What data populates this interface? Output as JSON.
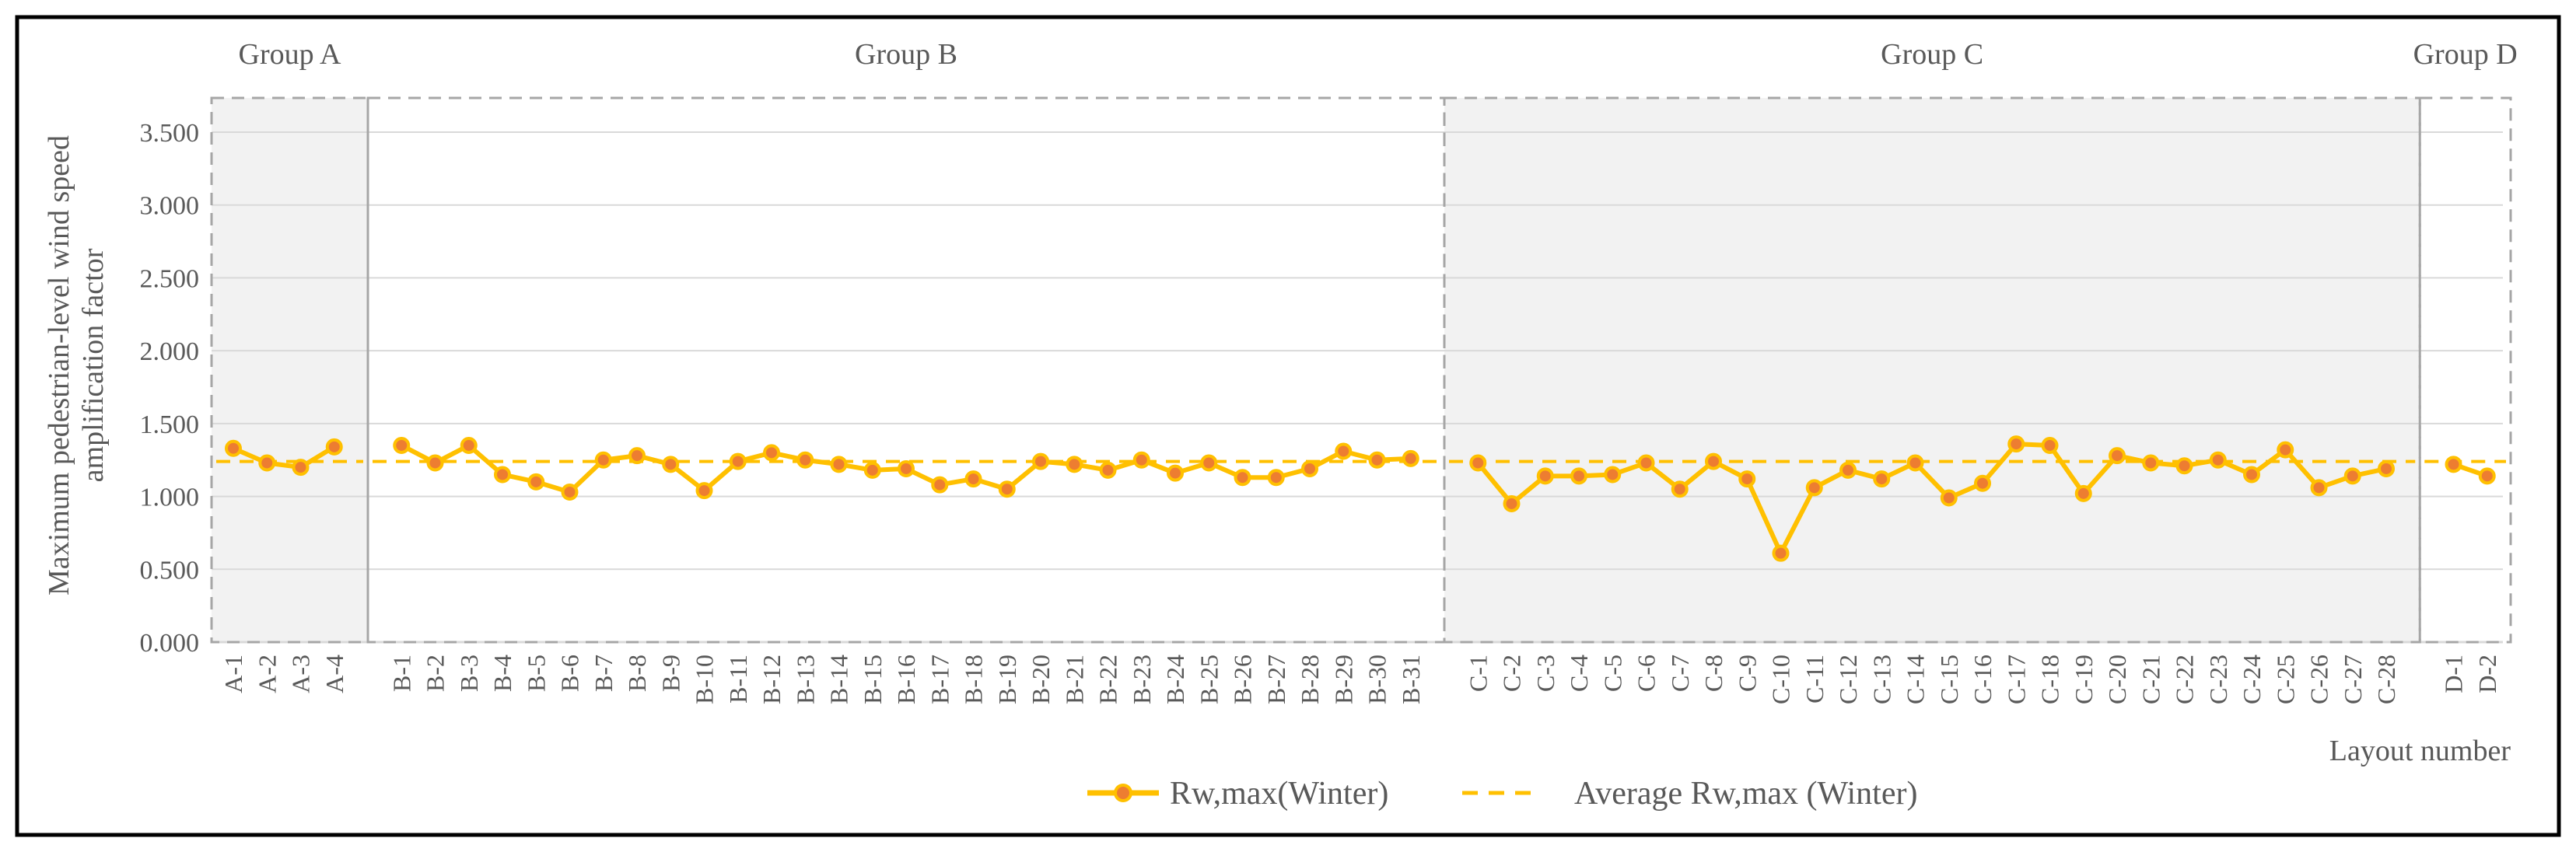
{
  "chart_data": {
    "type": "line",
    "ylabel": [
      "Maximum pedestrian-level wind speed",
      "amplification factor"
    ],
    "xlabel": "Layout number",
    "ylim": [
      0,
      3.5
    ],
    "y_ticks": [
      "0.000",
      "0.500",
      "1.000",
      "1.500",
      "2.000",
      "2.500",
      "3.000",
      "3.500"
    ],
    "grid": "horizontal",
    "legend_position": "bottom-center",
    "colors": {
      "line": "#FFC000",
      "marker_fill": "#ED7D31",
      "marker_stroke": "#FFC000",
      "average": "#FFC000",
      "group_shade": "#F2F2F2",
      "group_border": "#A6A6A6",
      "grid": "#D9D9D9",
      "text": "#595959",
      "frame": "#000000"
    },
    "groups": [
      {
        "label": "Group A",
        "categories": [
          "A-1",
          "A-2",
          "A-3",
          "A-4"
        ],
        "shaded": true
      },
      {
        "label": "Group B",
        "categories": [
          "B-1",
          "B-2",
          "B-3",
          "B-4",
          "B-5",
          "B-6",
          "B-7",
          "B-8",
          "B-9",
          "B-10",
          "B-11",
          "B-12",
          "B-13",
          "B-14",
          "B-15",
          "B-16",
          "B-17",
          "B-18",
          "B-19",
          "B-20",
          "B-21",
          "B-22",
          "B-23",
          "B-24",
          "B-25",
          "B-26",
          "B-27",
          "B-28",
          "B-29",
          "B-30",
          "B-31"
        ],
        "shaded": false
      },
      {
        "label": "Group C",
        "categories": [
          "C-1",
          "C-2",
          "C-3",
          "C-4",
          "C-5",
          "C-6",
          "C-7",
          "C-8",
          "C-9",
          "C-10",
          "C-11",
          "C-12",
          "C-13",
          "C-14",
          "C-15",
          "C-16",
          "C-17",
          "C-18",
          "C-19",
          "C-20",
          "C-21",
          "C-22",
          "C-23",
          "C-24",
          "C-25",
          "C-26",
          "C-27",
          "C-28"
        ],
        "shaded": true
      },
      {
        "label": "Group D",
        "categories": [
          "D-1",
          "D-2"
        ],
        "shaded": false
      }
    ],
    "series": [
      {
        "name": "Rw,max(Winter)",
        "values": [
          [
            1.33,
            1.23,
            1.2,
            1.34
          ],
          [
            1.35,
            1.23,
            1.35,
            1.15,
            1.1,
            1.03,
            1.25,
            1.28,
            1.22,
            1.04,
            1.24,
            1.3,
            1.25,
            1.22,
            1.18,
            1.19,
            1.08,
            1.12,
            1.05,
            1.24,
            1.22,
            1.18,
            1.25,
            1.16,
            1.23,
            1.13,
            1.13,
            1.19,
            1.31,
            1.25,
            1.26
          ],
          [
            1.23,
            0.95,
            1.14,
            1.14,
            1.15,
            1.23,
            1.05,
            1.24,
            1.12,
            0.61,
            1.06,
            1.18,
            1.12,
            1.23,
            0.99,
            1.09,
            1.36,
            1.35,
            1.02,
            1.28,
            1.23,
            1.21,
            1.25,
            1.15,
            1.32,
            1.06,
            1.14,
            1.19
          ],
          [
            1.22,
            1.14
          ]
        ]
      },
      {
        "name": "Average Rw,max (Winter)",
        "value": 1.24
      }
    ]
  }
}
